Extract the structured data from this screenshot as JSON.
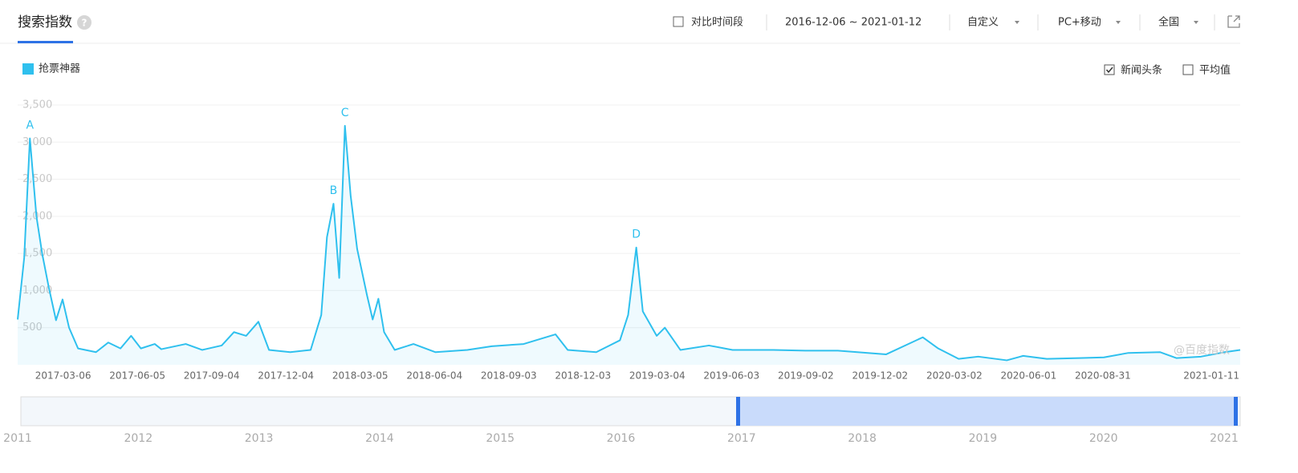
{
  "header": {
    "title": "搜索指数",
    "help": "?",
    "compare": "对比时间段",
    "date_range": "2016-12-06 ~ 2021-01-12",
    "mode": "自定义",
    "device": "PC+移动",
    "region": "全国"
  },
  "options": [
    {
      "label": "新闻头条",
      "checked": true
    },
    {
      "label": "平均值",
      "checked": false
    }
  ],
  "chart_data": {
    "type": "line",
    "xlim": [
      "2016-12-06",
      "2021-01-12"
    ],
    "x": [
      "2016-12-06",
      "2016-12-14",
      "2016-12-21",
      "2016-12-29",
      "2017-01-05",
      "2017-01-13",
      "2017-01-22",
      "2017-01-30",
      "2017-02-07",
      "2017-02-18",
      "2017-03-12",
      "2017-03-27",
      "2017-04-11",
      "2017-04-24",
      "2017-05-06",
      "2017-05-23",
      "2017-05-31",
      "2017-06-30",
      "2017-07-20",
      "2017-08-13",
      "2017-08-28",
      "2017-09-12",
      "2017-09-27",
      "2017-10-10",
      "2017-11-05",
      "2017-11-30",
      "2017-12-13",
      "2017-12-20",
      "2017-12-28",
      "2018-01-04",
      "2018-01-11",
      "2018-01-18",
      "2018-01-26",
      "2018-02-07",
      "2018-02-14",
      "2018-02-21",
      "2018-02-28",
      "2018-03-13",
      "2018-04-05",
      "2018-05-02",
      "2018-06-10",
      "2018-07-10",
      "2018-08-18",
      "2018-09-26",
      "2018-10-11",
      "2018-11-15",
      "2018-12-14",
      "2018-12-24",
      "2019-01-03",
      "2019-01-11",
      "2019-01-28",
      "2019-02-07",
      "2019-02-26",
      "2019-04-02",
      "2019-05-01",
      "2019-06-20",
      "2019-07-29",
      "2019-09-07",
      "2019-11-05",
      "2019-12-20",
      "2020-01-08",
      "2020-02-02",
      "2020-02-26",
      "2020-04-01",
      "2020-04-21",
      "2020-05-20",
      "2020-06-29",
      "2020-07-29",
      "2020-08-28",
      "2020-10-06",
      "2020-10-26",
      "2020-11-25",
      "2020-12-24",
      "2021-01-12"
    ],
    "series": [
      {
        "name": "抢票神器",
        "color": "#2fc0ee",
        "values": [
          610,
          1440,
          3050,
          2000,
          1500,
          1050,
          600,
          880,
          500,
          220,
          170,
          300,
          220,
          390,
          220,
          280,
          210,
          280,
          200,
          260,
          440,
          390,
          580,
          200,
          170,
          200,
          670,
          1720,
          2170,
          1170,
          3220,
          2280,
          1560,
          940,
          610,
          890,
          440,
          200,
          280,
          170,
          200,
          250,
          280,
          410,
          200,
          170,
          330,
          670,
          1580,
          720,
          390,
          500,
          200,
          260,
          200,
          200,
          190,
          190,
          140,
          370,
          220,
          80,
          110,
          60,
          120,
          80,
          90,
          100,
          160,
          170,
          90,
          110,
          170,
          200
        ]
      }
    ],
    "ylim": [
      0,
      3500
    ],
    "yticks": [
      500,
      {
        "value": 1000,
        "label": "1,000"
      },
      {
        "value": 1500,
        "label": "1,500"
      },
      {
        "value": 2000,
        "label": "2,000"
      },
      {
        "value": 2500,
        "label": "2,500"
      },
      {
        "value": 3000,
        "label": "3,000"
      },
      {
        "value": 3500,
        "label": "3,500"
      }
    ],
    "xticks": [
      "2017-03-06",
      "2017-06-05",
      "2017-09-04",
      "2017-12-04",
      "2018-03-05",
      "2018-06-04",
      "2018-09-03",
      "2018-12-03",
      "2019-03-04",
      "2019-06-03",
      "2019-09-02",
      "2019-12-02",
      "2020-03-02",
      "2020-06-01",
      "2020-08-31",
      "2021-01-11"
    ],
    "grid": true,
    "annotations": [
      {
        "text": "A",
        "x": "2016-12-21"
      },
      {
        "text": "B",
        "x": "2017-12-28"
      },
      {
        "text": "C",
        "x": "2018-01-11"
      },
      {
        "text": "D",
        "x": "2019-01-03"
      }
    ],
    "watermark": "@百度指数"
  },
  "range_slider": {
    "years": [
      "2011",
      "2012",
      "2013",
      "2014",
      "2015",
      "2016",
      "2017",
      "2018",
      "2019",
      "2020",
      "2021"
    ]
  }
}
